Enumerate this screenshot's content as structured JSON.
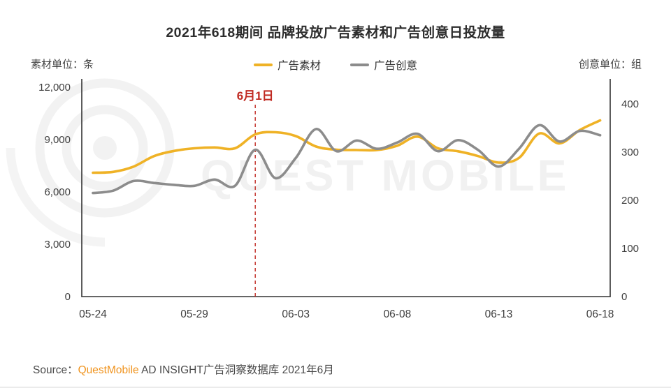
{
  "title": "2021年618期间 品牌投放广告素材和广告创意日投放量",
  "axis_units": {
    "left": "素材单位：条",
    "right": "创意单位：组"
  },
  "legend": {
    "items": [
      {
        "label": "广告素材",
        "color": "#EFB226"
      },
      {
        "label": "广告创意",
        "color": "#8C8C8C"
      }
    ]
  },
  "watermark": {
    "text": "QUEST MOBILE",
    "logo": "questmobile-target-logo"
  },
  "source": {
    "prefix": "Source：",
    "brand": "QuestMobile",
    "rest": " AD INSIGHT广告洞察数据库 2021年6月"
  },
  "chart_data": {
    "type": "line",
    "title": "2021年618期间 品牌投放广告素材和广告创意日投放量",
    "x": [
      "05-24",
      "05-25",
      "05-26",
      "05-27",
      "05-28",
      "05-29",
      "05-30",
      "05-31",
      "06-01",
      "06-02",
      "06-03",
      "06-04",
      "06-05",
      "06-06",
      "06-07",
      "06-08",
      "06-09",
      "06-10",
      "06-11",
      "06-12",
      "06-13",
      "06-14",
      "06-15",
      "06-16",
      "06-17",
      "06-18"
    ],
    "x_tick_labels": [
      "05-24",
      "05-29",
      "06-03",
      "06-08",
      "06-13",
      "06-18"
    ],
    "left_axis": {
      "unit": "条",
      "ticks": [
        0,
        3000,
        6000,
        9000,
        12000
      ],
      "range": [
        0,
        12400
      ]
    },
    "right_axis": {
      "unit": "组",
      "ticks": [
        0,
        100,
        200,
        300,
        400
      ],
      "range": [
        0,
        447
      ]
    },
    "grid": false,
    "legend_position": "top-center",
    "annotation": {
      "text": "6月1日",
      "x": "06-01",
      "color": "#C02A22",
      "style": "dashed-vertical-line"
    },
    "series": [
      {
        "name": "广告素材",
        "axis": "left",
        "color": "#EFB226",
        "smooth": true,
        "values": [
          7100,
          7150,
          7450,
          8050,
          8350,
          8500,
          8550,
          8500,
          9300,
          9420,
          9200,
          8600,
          8420,
          8400,
          8400,
          8650,
          9170,
          8500,
          8330,
          8050,
          7680,
          7950,
          9350,
          8780,
          9550,
          10100
        ]
      },
      {
        "name": "广告创意",
        "axis": "right",
        "color": "#8C8C8C",
        "smooth": true,
        "values": [
          215,
          220,
          240,
          236,
          232,
          230,
          243,
          230,
          305,
          246,
          288,
          348,
          302,
          324,
          307,
          320,
          338,
          302,
          325,
          304,
          270,
          307,
          356,
          322,
          344,
          335
        ]
      }
    ]
  }
}
